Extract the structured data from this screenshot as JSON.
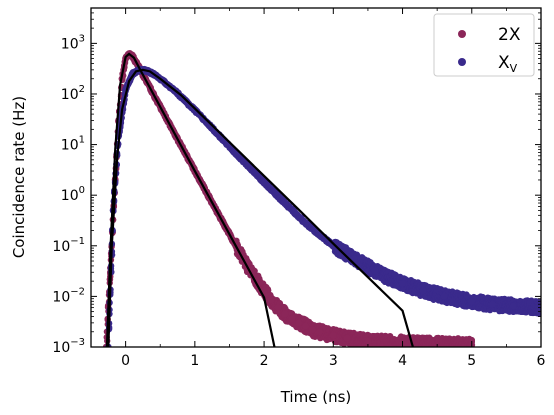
{
  "chart_data": {
    "type": "scatter",
    "title": "",
    "xlabel": "Time (ns)",
    "ylabel": "Coincidence rate (Hz)",
    "xlim": [
      -0.5,
      6.0
    ],
    "ylim": [
      0.001,
      5000
    ],
    "yscale": "log",
    "grid": false,
    "legend_position": "top-right",
    "x_ticks": [
      {
        "value": 0,
        "label": "0"
      },
      {
        "value": 1,
        "label": "1"
      },
      {
        "value": 2,
        "label": "2"
      },
      {
        "value": 3,
        "label": "3"
      },
      {
        "value": 4,
        "label": "4"
      },
      {
        "value": 5,
        "label": "5"
      },
      {
        "value": 6,
        "label": "6"
      }
    ],
    "y_ticks": [
      {
        "value": 0.001,
        "base": "10",
        "exp": "−3"
      },
      {
        "value": 0.01,
        "base": "10",
        "exp": "−2"
      },
      {
        "value": 0.1,
        "base": "10",
        "exp": "−1"
      },
      {
        "value": 1,
        "base": "10",
        "exp": "0"
      },
      {
        "value": 10,
        "base": "10",
        "exp": "1"
      },
      {
        "value": 100,
        "base": "10",
        "exp": "2"
      },
      {
        "value": 1000,
        "base": "10",
        "exp": "3"
      }
    ],
    "series": [
      {
        "name": "2X",
        "label_main": "2X",
        "label_sub": "",
        "color": "#8b2659",
        "points": [
          [
            -0.28,
            0.001
          ],
          [
            -0.22,
            0.03
          ],
          [
            -0.15,
            2
          ],
          [
            -0.1,
            30
          ],
          [
            -0.05,
            200
          ],
          [
            0.0,
            500
          ],
          [
            0.05,
            620
          ],
          [
            0.1,
            560
          ],
          [
            0.2,
            320
          ],
          [
            0.3,
            180
          ],
          [
            0.4,
            100
          ],
          [
            0.5,
            56
          ],
          [
            0.6,
            31
          ],
          [
            0.7,
            17
          ],
          [
            0.8,
            9.6
          ],
          [
            0.9,
            5.4
          ],
          [
            1.0,
            3.0
          ],
          [
            1.1,
            1.7
          ],
          [
            1.2,
            0.95
          ],
          [
            1.3,
            0.53
          ],
          [
            1.4,
            0.3
          ],
          [
            1.5,
            0.17
          ],
          [
            1.6,
            0.095
          ],
          [
            1.7,
            0.055
          ],
          [
            1.8,
            0.033
          ],
          [
            1.9,
            0.02
          ],
          [
            2.0,
            0.013
          ],
          [
            2.1,
            0.0085
          ],
          [
            2.2,
            0.006
          ],
          [
            2.3,
            0.0045
          ],
          [
            2.4,
            0.0036
          ],
          [
            2.5,
            0.003
          ],
          [
            2.6,
            0.0026
          ],
          [
            2.7,
            0.0022
          ],
          [
            2.8,
            0.002
          ],
          [
            3.0,
            0.0017
          ],
          [
            3.2,
            0.0015
          ],
          [
            3.5,
            0.0013
          ],
          [
            4.0,
            0.0012
          ],
          [
            5.0,
            0.0011
          ]
        ]
      },
      {
        "name": "X_V",
        "label_main": "X",
        "label_sub": "V",
        "color": "#3a2a8c",
        "points": [
          [
            -0.25,
            0.001
          ],
          [
            -0.18,
            0.5
          ],
          [
            -0.1,
            15
          ],
          [
            0.0,
            120
          ],
          [
            0.1,
            250
          ],
          [
            0.2,
            300
          ],
          [
            0.3,
            290
          ],
          [
            0.4,
            250
          ],
          [
            0.5,
            200
          ],
          [
            0.7,
            120
          ],
          [
            1.0,
            48
          ],
          [
            1.3,
            18
          ],
          [
            1.6,
            6.5
          ],
          [
            2.0,
            1.8
          ],
          [
            2.3,
            0.7
          ],
          [
            2.6,
            0.28
          ],
          [
            3.0,
            0.1
          ],
          [
            3.3,
            0.055
          ],
          [
            3.6,
            0.032
          ],
          [
            4.0,
            0.018
          ],
          [
            4.3,
            0.013
          ],
          [
            4.6,
            0.01
          ],
          [
            5.0,
            0.008
          ],
          [
            5.3,
            0.007
          ],
          [
            5.6,
            0.0065
          ],
          [
            6.0,
            0.006
          ]
        ]
      }
    ],
    "fits": [
      {
        "name": "2X fit",
        "color": "#000000",
        "points": [
          [
            -0.27,
            0.001
          ],
          [
            -0.22,
            0.08
          ],
          [
            -0.15,
            8
          ],
          [
            -0.08,
            150
          ],
          [
            0.0,
            540
          ],
          [
            0.05,
            620
          ],
          [
            0.12,
            520
          ],
          [
            0.2,
            320
          ],
          [
            0.4,
            100
          ],
          [
            0.6,
            31
          ],
          [
            0.8,
            9.6
          ],
          [
            1.0,
            3.0
          ],
          [
            1.2,
            0.95
          ],
          [
            1.4,
            0.3
          ],
          [
            1.6,
            0.095
          ],
          [
            1.8,
            0.03
          ],
          [
            2.0,
            0.0095
          ],
          [
            2.15,
            0.001
          ]
        ]
      },
      {
        "name": "X_V fit",
        "color": "#000000",
        "points": [
          [
            -0.25,
            0.001
          ],
          [
            -0.2,
            0.1
          ],
          [
            -0.12,
            6
          ],
          [
            -0.05,
            50
          ],
          [
            0.05,
            180
          ],
          [
            0.15,
            280
          ],
          [
            0.25,
            300
          ],
          [
            0.35,
            280
          ],
          [
            0.5,
            200
          ],
          [
            0.8,
            95
          ],
          [
            1.2,
            28
          ],
          [
            1.6,
            8.2
          ],
          [
            2.0,
            2.4
          ],
          [
            2.5,
            0.52
          ],
          [
            3.0,
            0.11
          ],
          [
            3.5,
            0.024
          ],
          [
            4.0,
            0.0052
          ],
          [
            4.15,
            0.001
          ]
        ]
      }
    ]
  }
}
